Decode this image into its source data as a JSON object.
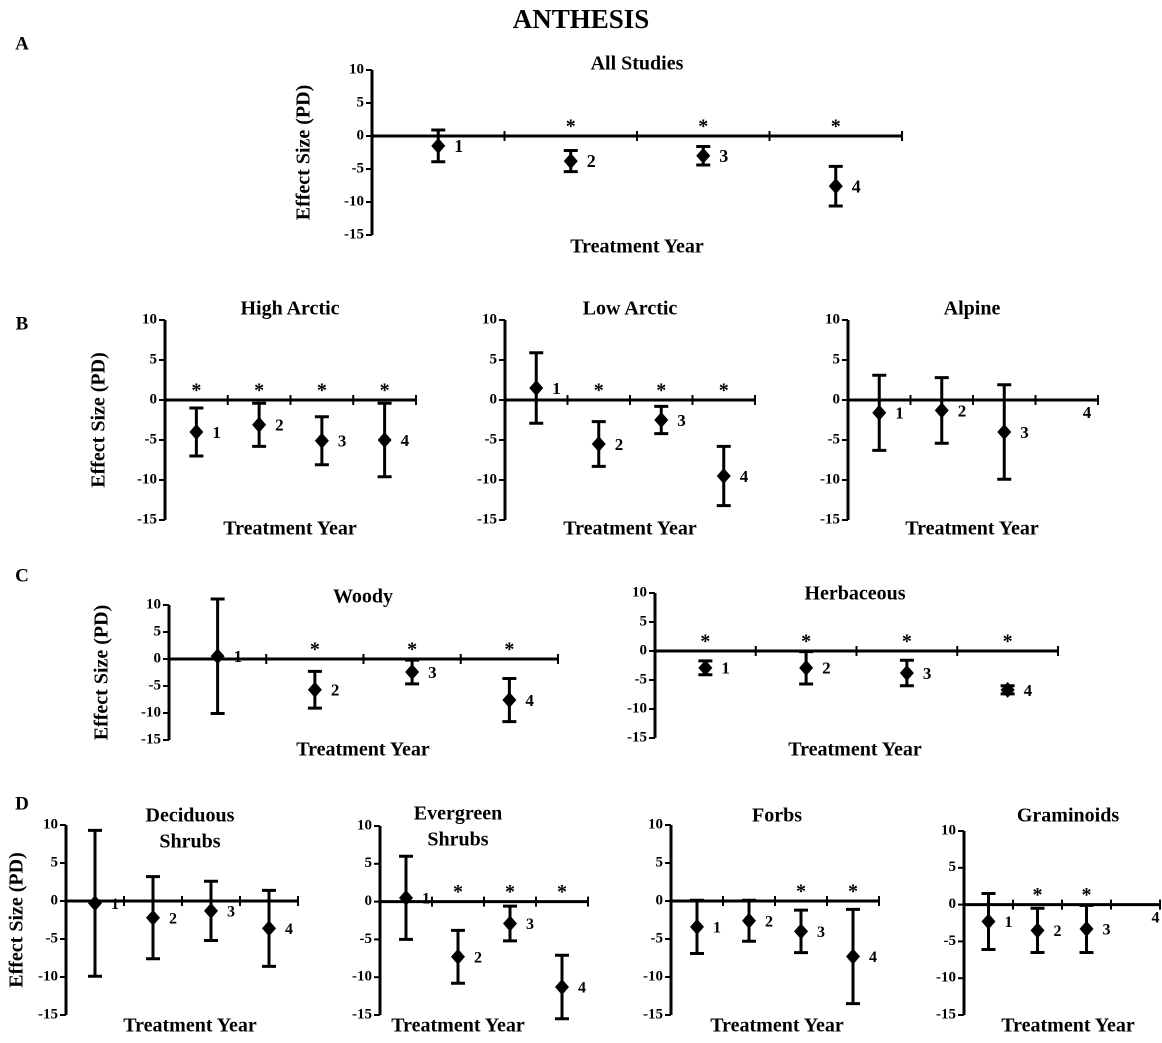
{
  "figure_title": "ANTHESIS",
  "panel_labels": [
    "A",
    "B",
    "C",
    "D"
  ],
  "chart_data": [
    {
      "type": "errorbar",
      "title_lines": [
        "All Studies"
      ],
      "ylabel": "Effect Size (PD)",
      "xlabel": "Treatment Year",
      "categories": [
        "1",
        "2",
        "3",
        "4"
      ],
      "values": [
        -1.5,
        -3.8,
        -3,
        -7.6
      ],
      "errors": [
        2.4,
        1.6,
        1.4,
        3
      ],
      "significance": [
        null,
        "*",
        "*",
        "*"
      ],
      "color": "#000000",
      "ylim": [
        -15,
        10
      ],
      "yticks": [
        -15,
        -10,
        -5,
        0,
        5,
        10
      ]
    },
    {
      "type": "errorbar",
      "title_lines": [
        "High Arctic"
      ],
      "ylabel": "Effect Size (PD)",
      "xlabel": "Treatment Year",
      "categories": [
        "1",
        "2",
        "3",
        "4"
      ],
      "values": [
        -4,
        -3.1,
        -5.1,
        -5
      ],
      "errors": [
        3,
        2.7,
        3,
        4.6
      ],
      "significance": [
        "*",
        "*",
        "*",
        "*"
      ],
      "color": "#000000",
      "ylim": [
        -15,
        10
      ],
      "yticks": [
        -15,
        -10,
        -5,
        0,
        5,
        10
      ]
    },
    {
      "type": "errorbar",
      "title_lines": [
        "Low Arctic"
      ],
      "xlabel": "Treatment Year",
      "categories": [
        "1",
        "2",
        "3",
        "4"
      ],
      "values": [
        1.5,
        -5.5,
        -2.5,
        -9.5
      ],
      "errors": [
        4.4,
        2.8,
        1.7,
        3.7
      ],
      "significance": [
        null,
        "*",
        "*",
        "*"
      ],
      "color": "#000000",
      "ylim": [
        -15,
        10
      ],
      "yticks": [
        -15,
        -10,
        -5,
        0,
        5,
        10
      ]
    },
    {
      "type": "errorbar",
      "title_lines": [
        "Alpine"
      ],
      "xlabel": "Treatment Year",
      "categories": [
        "1",
        "2",
        "3",
        "4"
      ],
      "values": [
        -1.6,
        -1.3,
        -4,
        null
      ],
      "errors": [
        4.7,
        4.1,
        5.9,
        null
      ],
      "significance": [
        null,
        null,
        null,
        null
      ],
      "color": "#000000",
      "ylim": [
        -15,
        10
      ],
      "yticks": [
        -15,
        -10,
        -5,
        0,
        5,
        10
      ]
    },
    {
      "type": "errorbar",
      "title_lines": [
        "Woody"
      ],
      "ylabel": "Effect Size (PD)",
      "xlabel": "Treatment Year",
      "categories": [
        "1",
        "2",
        "3",
        "4"
      ],
      "values": [
        0.5,
        -5.7,
        -2.4,
        -7.6
      ],
      "errors": [
        10.6,
        3.4,
        2.2,
        4
      ],
      "significance": [
        null,
        "*",
        "*",
        "*"
      ],
      "color": "#000000",
      "ylim": [
        -15,
        10
      ],
      "yticks": [
        -15,
        -10,
        -5,
        0,
        5,
        10
      ]
    },
    {
      "type": "errorbar",
      "title_lines": [
        "Herbaceous"
      ],
      "xlabel": "Treatment Year",
      "categories": [
        "1",
        "2",
        "3",
        "4"
      ],
      "values": [
        -2.9,
        -2.9,
        -3.8,
        -6.7
      ],
      "errors": [
        1.2,
        2.8,
        2.2,
        0.7
      ],
      "significance": [
        "*",
        "*",
        "*",
        "*"
      ],
      "color": "#000000",
      "ylim": [
        -15,
        10
      ],
      "yticks": [
        -15,
        -10,
        -5,
        0,
        5,
        10
      ]
    },
    {
      "type": "errorbar",
      "title_lines": [
        "Deciduous",
        "Shrubs"
      ],
      "ylabel": "Effect Size (PD)",
      "xlabel": "Treatment Year",
      "categories": [
        "1",
        "2",
        "3",
        "4"
      ],
      "values": [
        -0.3,
        -2.2,
        -1.3,
        -3.6
      ],
      "errors": [
        9.6,
        5.4,
        3.9,
        5
      ],
      "significance": [
        null,
        null,
        null,
        null
      ],
      "color": "#000000",
      "ylim": [
        -15,
        10
      ],
      "yticks": [
        -15,
        -10,
        -5,
        0,
        5,
        10
      ]
    },
    {
      "type": "errorbar",
      "title_lines": [
        "Evergreen",
        "Shrubs"
      ],
      "xlabel": "Treatment Year",
      "categories": [
        "1",
        "2",
        "3",
        "4"
      ],
      "values": [
        0.5,
        -7.3,
        -2.9,
        -11.3
      ],
      "errors": [
        5.5,
        3.5,
        2.3,
        4.2
      ],
      "significance": [
        null,
        "*",
        "*",
        "*"
      ],
      "color": "#000000",
      "ylim": [
        -15,
        10
      ],
      "yticks": [
        -15,
        -10,
        -5,
        0,
        5,
        10
      ]
    },
    {
      "type": "errorbar",
      "title_lines": [
        "Forbs"
      ],
      "xlabel": "Treatment Year",
      "categories": [
        "1",
        "2",
        "3",
        "4"
      ],
      "values": [
        -3.4,
        -2.6,
        -4,
        -7.3
      ],
      "errors": [
        3.5,
        2.7,
        2.8,
        6.2
      ],
      "significance": [
        null,
        null,
        "*",
        "*"
      ],
      "color": "#000000",
      "ylim": [
        -15,
        10
      ],
      "yticks": [
        -15,
        -10,
        -5,
        0,
        5,
        10
      ]
    },
    {
      "type": "errorbar",
      "title_lines": [
        "Graminoids"
      ],
      "xlabel": "Treatment Year",
      "categories": [
        "1",
        "2",
        "3",
        "4"
      ],
      "values": [
        -2.3,
        -3.5,
        -3.3,
        null
      ],
      "errors": [
        3.8,
        3,
        3.2,
        null
      ],
      "significance": [
        null,
        "*",
        "*",
        null
      ],
      "color": "#000000",
      "ylim": [
        -15,
        10
      ],
      "yticks": [
        -15,
        -10,
        -5,
        0,
        5,
        10
      ]
    }
  ]
}
